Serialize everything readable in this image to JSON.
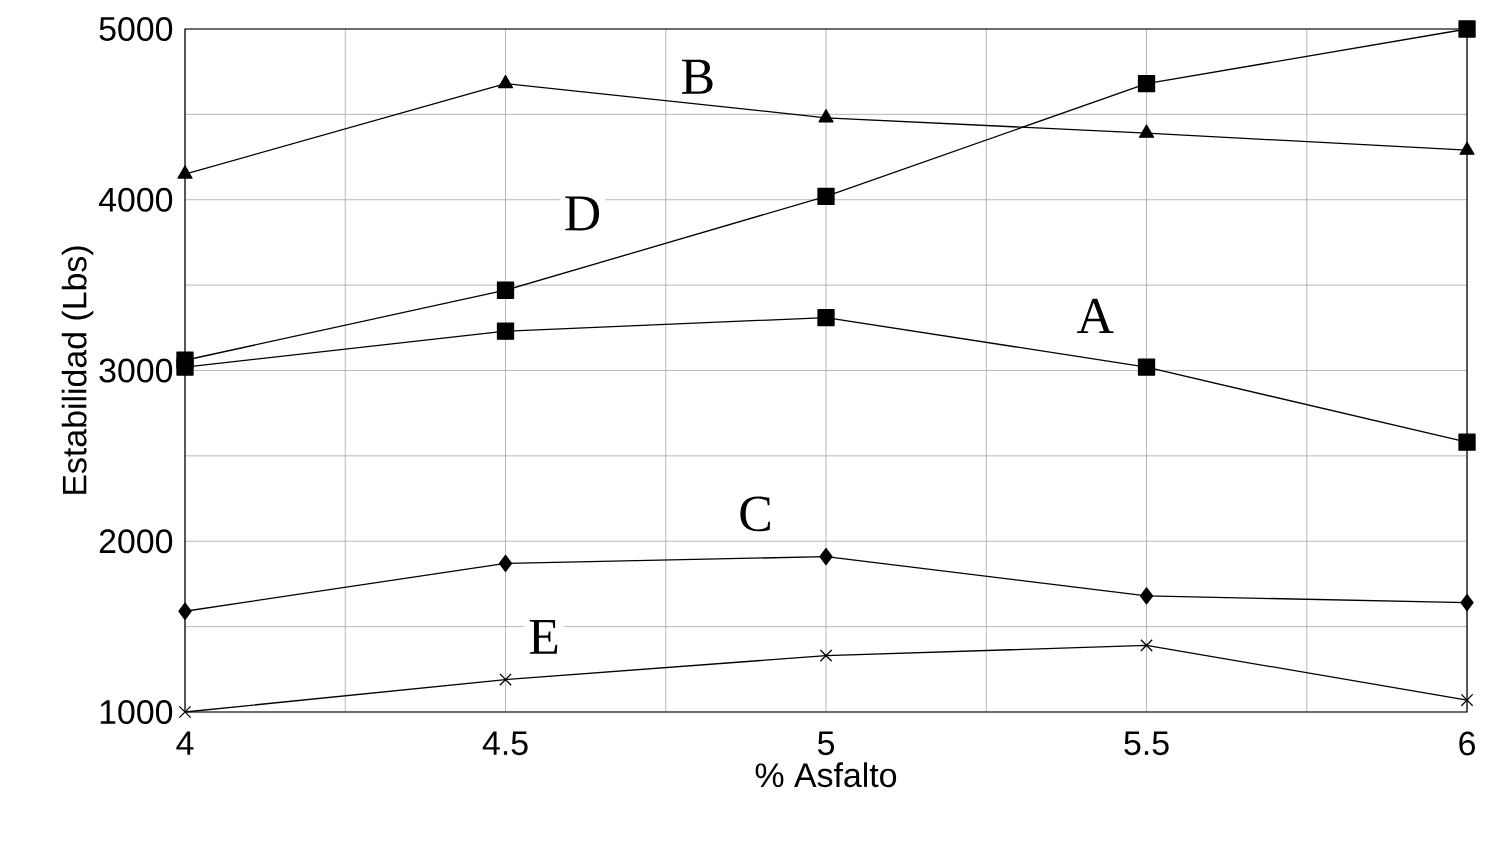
{
  "chart_data": {
    "type": "line",
    "xlabel": "% Asfalto",
    "ylabel": "Estabilidad (Lbs)",
    "x": [
      4,
      4.5,
      5,
      5.5,
      6
    ],
    "series": [
      {
        "name": "A",
        "color": "#000000",
        "marker": "square",
        "values": [
          3020,
          3230,
          3310,
          3020,
          2580
        ]
      },
      {
        "name": "B",
        "color": "#000000",
        "marker": "triangle",
        "values": [
          4150,
          4680,
          4480,
          4390,
          4290
        ]
      },
      {
        "name": "C",
        "color": "#000000",
        "marker": "diamond",
        "values": [
          1590,
          1870,
          1910,
          1680,
          1640
        ]
      },
      {
        "name": "D",
        "color": "#000000",
        "marker": "square",
        "values": [
          3060,
          3470,
          4020,
          4680,
          5000
        ]
      },
      {
        "name": "E",
        "color": "#000000",
        "marker": "cross",
        "values": [
          1000,
          1190,
          1330,
          1390,
          1070
        ]
      }
    ],
    "xlim": [
      4,
      6
    ],
    "ylim": [
      1000,
      5000
    ],
    "xticks": [
      4,
      {
        "value": 4.25,
        "label": null
      },
      4.5,
      {
        "value": 4.75,
        "label": null
      },
      5,
      {
        "value": 5.25,
        "label": null
      },
      5.5,
      {
        "value": 5.75,
        "label": null
      },
      6
    ],
    "yticks": [
      1000,
      {
        "value": 1500,
        "label": null
      },
      2000,
      {
        "value": 2500,
        "label": null
      },
      3000,
      {
        "value": 3500,
        "label": null
      },
      4000,
      {
        "value": 4500,
        "label": null
      },
      5000
    ],
    "grid": true
  }
}
